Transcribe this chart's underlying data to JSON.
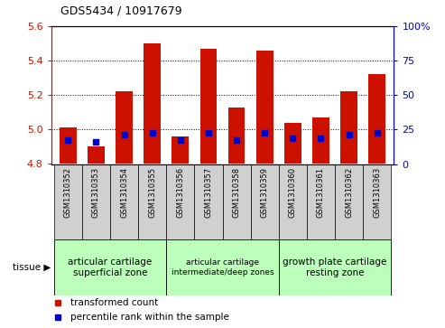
{
  "title": "GDS5434 / 10917679",
  "samples": [
    "GSM1310352",
    "GSM1310353",
    "GSM1310354",
    "GSM1310355",
    "GSM1310356",
    "GSM1310357",
    "GSM1310358",
    "GSM1310359",
    "GSM1310360",
    "GSM1310361",
    "GSM1310362",
    "GSM1310363"
  ],
  "red_values": [
    5.01,
    4.9,
    5.22,
    5.5,
    4.96,
    5.47,
    5.13,
    5.46,
    5.04,
    5.07,
    5.22,
    5.32
  ],
  "blue_values": [
    4.94,
    4.93,
    4.97,
    4.98,
    4.94,
    4.98,
    4.94,
    4.98,
    4.95,
    4.95,
    4.97,
    4.98
  ],
  "bar_bottom": 4.8,
  "ylim_left": [
    4.8,
    5.6
  ],
  "ylim_right": [
    0,
    100
  ],
  "yticks_left": [
    4.8,
    5.0,
    5.2,
    5.4,
    5.6
  ],
  "yticks_right": [
    0,
    25,
    50,
    75,
    100
  ],
  "red_color": "#cc1100",
  "blue_color": "#0000cc",
  "tissue_groups": [
    {
      "start": 0,
      "end": 3,
      "label": "articular cartilage\nsuperficial zone"
    },
    {
      "start": 4,
      "end": 7,
      "label": "articular cartilage\nintermediate/deep zones"
    },
    {
      "start": 8,
      "end": 11,
      "label": "growth plate cartilage\nresting zone"
    }
  ],
  "tissue_label": "tissue ▶",
  "grid_yticks": [
    5.0,
    5.2,
    5.4
  ],
  "green_color": "#bbffbb",
  "gray_color": "#d0d0d0",
  "bar_width": 0.6,
  "blue_marker_size": 4
}
